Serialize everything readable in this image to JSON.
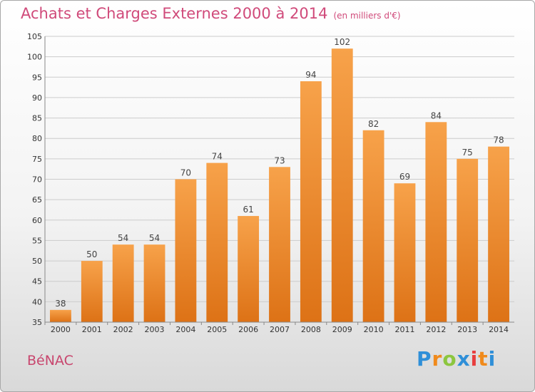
{
  "title": "Achats et Charges Externes 2000 à 2014",
  "subtitle": "(en milliers d'€)",
  "commune": "BéNAC",
  "logo": {
    "letters": [
      "P",
      "r",
      "o",
      "x",
      "i",
      "t",
      "i"
    ],
    "colors": [
      "#2f8fd8",
      "#f08a1c",
      "#8cc63f",
      "#2f8fd8",
      "#e83e3e",
      "#f08a1c",
      "#2f8fd8"
    ]
  },
  "chart_data": {
    "type": "bar",
    "categories": [
      "2000",
      "2001",
      "2002",
      "2003",
      "2004",
      "2005",
      "2006",
      "2007",
      "2008",
      "2009",
      "2010",
      "2011",
      "2012",
      "2013",
      "2014"
    ],
    "values": [
      38,
      50,
      54,
      54,
      70,
      74,
      61,
      73,
      94,
      102,
      82,
      69,
      84,
      75,
      78
    ],
    "title": "Achats et Charges Externes 2000 à 2014",
    "ylim": [
      35,
      105
    ],
    "yticks": [
      35,
      40,
      45,
      50,
      55,
      60,
      65,
      70,
      75,
      80,
      85,
      90,
      95,
      100,
      105
    ],
    "grid": true,
    "colors": {
      "bar_top": "#f7a24a",
      "bar_bottom": "#dd7216",
      "grid": "#cccccc",
      "axis": "#888888"
    }
  }
}
